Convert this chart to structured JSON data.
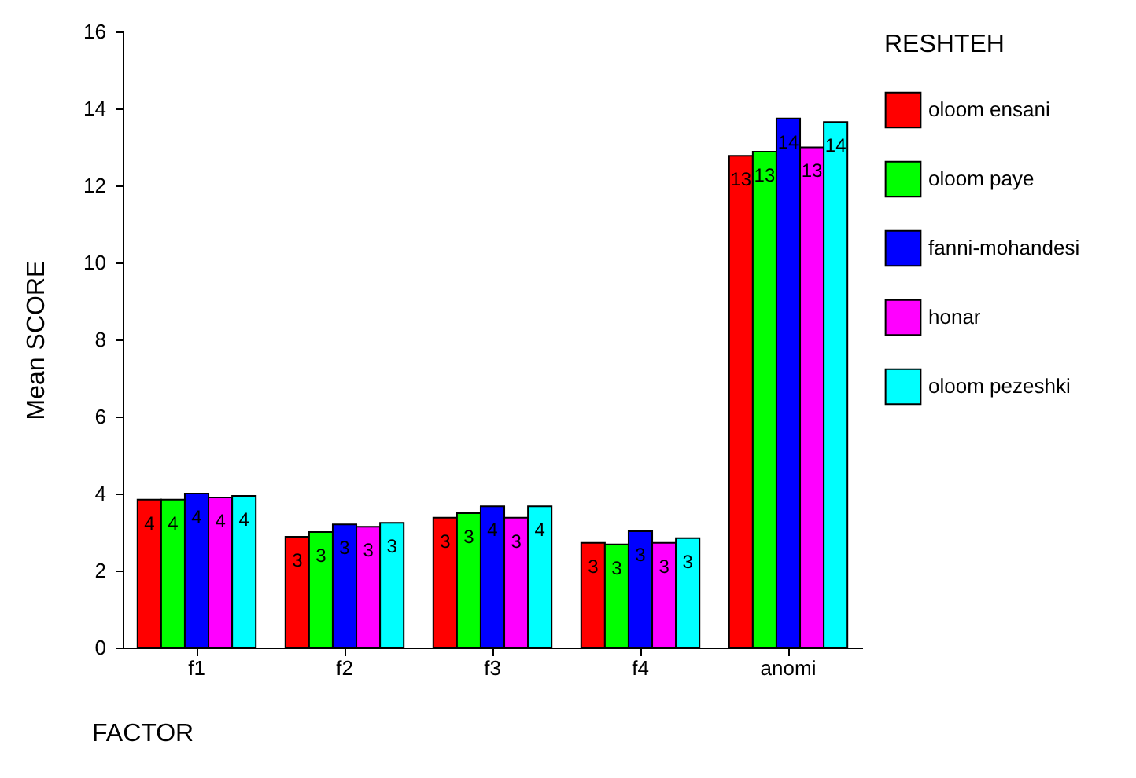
{
  "chart_data": {
    "type": "bar",
    "xlabel": "FACTOR",
    "ylabel": "Mean SCORE",
    "legend_title": "RESHTEH",
    "categories": [
      "f1",
      "f2",
      "f3",
      "f4",
      "anomi"
    ],
    "series": [
      {
        "name": "oloom ensani",
        "color": "#ff0000",
        "values": [
          3.84,
          2.88,
          3.37,
          2.72,
          12.77
        ],
        "value_labels": [
          "4",
          "3",
          "3",
          "3",
          "13"
        ]
      },
      {
        "name": "oloom paye",
        "color": "#00ff00",
        "values": [
          3.84,
          3.0,
          3.49,
          2.68,
          12.88
        ],
        "value_labels": [
          "4",
          "3",
          "3",
          "3",
          "13"
        ]
      },
      {
        "name": "fanni-mohandesi",
        "color": "#0000ff",
        "values": [
          4.0,
          3.2,
          3.67,
          3.02,
          13.74
        ],
        "value_labels": [
          "4",
          "3",
          "4",
          "3",
          "14"
        ]
      },
      {
        "name": "honar",
        "color": "#ff00ff",
        "values": [
          3.9,
          3.14,
          3.37,
          2.72,
          12.99
        ],
        "value_labels": [
          "4",
          "3",
          "3",
          "3",
          "13"
        ]
      },
      {
        "name": "oloom pezeshki",
        "color": "#00ffff",
        "values": [
          3.94,
          3.24,
          3.67,
          2.84,
          13.65
        ],
        "value_labels": [
          "4",
          "3",
          "4",
          "3",
          "14"
        ]
      }
    ],
    "ylim": [
      0,
      16
    ],
    "yticks": [
      0,
      2,
      4,
      6,
      8,
      10,
      12,
      14,
      16
    ],
    "grid": false,
    "legend": "right"
  }
}
